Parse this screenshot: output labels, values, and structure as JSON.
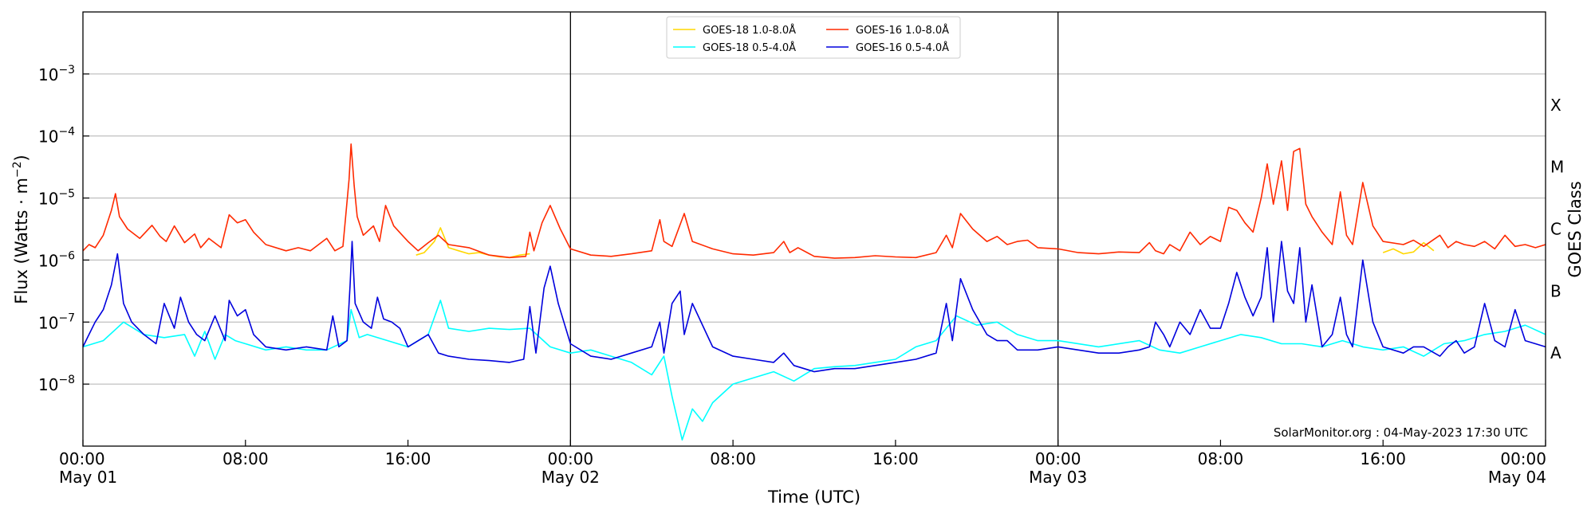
{
  "chart_data": {
    "type": "line",
    "xlabel": "Time (UTC)",
    "ylabel": "Flux (Watts · m",
    "ylabel_sup": "−2",
    "ylabel_close": ")",
    "right_ylabel": "GOES Class",
    "y_scale": "log",
    "ylim": [
      1e-09,
      0.01
    ],
    "grid": "horizontal",
    "legend_position": "top-center",
    "x_range_hours": [
      0,
      72
    ],
    "x_ticks": [
      {
        "h": 0,
        "time": "00:00",
        "day": "May 01"
      },
      {
        "h": 8,
        "time": "08:00",
        "day": ""
      },
      {
        "h": 16,
        "time": "16:00",
        "day": ""
      },
      {
        "h": 24,
        "time": "00:00",
        "day": "May 02"
      },
      {
        "h": 32,
        "time": "08:00",
        "day": ""
      },
      {
        "h": 40,
        "time": "16:00",
        "day": ""
      },
      {
        "h": 48,
        "time": "00:00",
        "day": "May 03"
      },
      {
        "h": 56,
        "time": "08:00",
        "day": ""
      },
      {
        "h": 64,
        "time": "16:00",
        "day": ""
      },
      {
        "h": 72,
        "time": "00:00",
        "day": "May 04"
      }
    ],
    "y_ticks": [
      {
        "exp": -8,
        "base": "10",
        "sup": "−8"
      },
      {
        "exp": -7,
        "base": "10",
        "sup": "−7"
      },
      {
        "exp": -6,
        "base": "10",
        "sup": "−6"
      },
      {
        "exp": -5,
        "base": "10",
        "sup": "−5"
      },
      {
        "exp": -4,
        "base": "10",
        "sup": "−4"
      },
      {
        "exp": -3,
        "base": "10",
        "sup": "−3"
      }
    ],
    "day_boundaries_hours": [
      24,
      48
    ],
    "goes_classes": [
      {
        "label": "A",
        "log_flux": -7.5
      },
      {
        "label": "B",
        "log_flux": -6.5
      },
      {
        "label": "C",
        "log_flux": -5.5
      },
      {
        "label": "M",
        "log_flux": -4.5
      },
      {
        "label": "X",
        "log_flux": -3.5
      }
    ],
    "credit": "SolarMonitor.org : 04-May-2023 17:30 UTC",
    "legend": [
      {
        "label": "GOES-18 1.0-8.0Å",
        "color": "#ffd700"
      },
      {
        "label": "GOES-16 1.0-8.0Å",
        "color": "#ff2a00"
      },
      {
        "label": "GOES-18 0.5-4.0Å",
        "color": "#00ffff"
      },
      {
        "label": "GOES-16 0.5-4.0Å",
        "color": "#0000dd"
      }
    ],
    "series": [
      {
        "name": "GOES-18 1.0-8.0Å",
        "color": "#ffd700",
        "x": [
          16.4,
          16.8,
          17.3,
          17.6,
          18.0,
          18.5,
          19.0,
          19.5,
          20.0,
          20.5,
          21.0,
          21.5,
          22.0,
          64.0,
          64.5,
          65.0,
          65.5,
          66.0,
          66.5
        ],
        "log_y": [
          -5.92,
          -5.88,
          -5.7,
          -5.48,
          -5.8,
          -5.85,
          -5.9,
          -5.88,
          -5.92,
          -5.95,
          -5.96,
          -5.92,
          -5.9,
          -5.88,
          -5.82,
          -5.9,
          -5.87,
          -5.72,
          -5.85
        ]
      },
      {
        "name": "GOES-16 1.0-8.0Å",
        "color": "#ff2a00",
        "x": [
          0,
          0.3,
          0.6,
          1.0,
          1.4,
          1.6,
          1.8,
          2.2,
          2.8,
          3.4,
          3.8,
          4.1,
          4.5,
          5.0,
          5.5,
          5.8,
          6.2,
          6.8,
          7.2,
          7.6,
          8.0,
          8.4,
          9.0,
          10.0,
          10.6,
          11.2,
          12.0,
          12.4,
          12.8,
          13.1,
          13.2,
          13.35,
          13.5,
          13.8,
          14.3,
          14.6,
          14.9,
          15.3,
          16.0,
          16.5,
          17.0,
          17.5,
          18.0,
          19.0,
          20.0,
          21.0,
          21.8,
          22.0,
          22.2,
          22.6,
          23.0,
          23.5,
          24.0,
          25.0,
          26.0,
          27.0,
          28.0,
          28.4,
          28.6,
          29.0,
          29.6,
          30.0,
          31.0,
          32.0,
          33.0,
          34.0,
          34.5,
          34.8,
          35.2,
          36.0,
          37.0,
          38.0,
          39.0,
          40.0,
          41.0,
          42.0,
          42.5,
          42.8,
          43.2,
          43.8,
          44.5,
          45.0,
          45.5,
          46.0,
          46.5,
          47.0,
          48.0,
          49.0,
          50.0,
          51.0,
          52.0,
          52.5,
          52.8,
          53.2,
          53.5,
          54.0,
          54.5,
          55.0,
          55.5,
          56.0,
          56.4,
          56.8,
          57.2,
          57.6,
          58.0,
          58.3,
          58.6,
          59.0,
          59.3,
          59.6,
          59.9,
          60.2,
          60.5,
          61.0,
          61.5,
          61.9,
          62.2,
          62.5,
          63.0,
          63.5,
          64.0,
          65.0,
          65.5,
          66.0,
          66.8,
          67.2,
          67.6,
          68.0,
          68.5,
          69.0,
          69.5,
          70.0,
          70.5,
          71.0,
          71.5,
          72.0
        ],
        "log_y": [
          -5.85,
          -5.75,
          -5.8,
          -5.6,
          -5.2,
          -4.93,
          -5.3,
          -5.5,
          -5.65,
          -5.44,
          -5.62,
          -5.7,
          -5.45,
          -5.72,
          -5.58,
          -5.8,
          -5.65,
          -5.8,
          -5.27,
          -5.4,
          -5.35,
          -5.55,
          -5.75,
          -5.85,
          -5.8,
          -5.85,
          -5.65,
          -5.85,
          -5.78,
          -4.7,
          -4.13,
          -4.8,
          -5.3,
          -5.6,
          -5.45,
          -5.7,
          -5.12,
          -5.45,
          -5.7,
          -5.85,
          -5.72,
          -5.6,
          -5.75,
          -5.8,
          -5.92,
          -5.96,
          -5.94,
          -5.55,
          -5.85,
          -5.4,
          -5.12,
          -5.5,
          -5.82,
          -5.92,
          -5.94,
          -5.9,
          -5.85,
          -5.35,
          -5.7,
          -5.78,
          -5.25,
          -5.7,
          -5.82,
          -5.9,
          -5.92,
          -5.88,
          -5.7,
          -5.88,
          -5.8,
          -5.94,
          -5.97,
          -5.96,
          -5.93,
          -5.95,
          -5.96,
          -5.88,
          -5.6,
          -5.8,
          -5.25,
          -5.5,
          -5.7,
          -5.62,
          -5.75,
          -5.7,
          -5.68,
          -5.8,
          -5.82,
          -5.88,
          -5.9,
          -5.87,
          -5.88,
          -5.72,
          -5.85,
          -5.9,
          -5.75,
          -5.85,
          -5.55,
          -5.75,
          -5.62,
          -5.7,
          -5.15,
          -5.2,
          -5.4,
          -5.55,
          -5.0,
          -4.45,
          -5.1,
          -4.4,
          -5.2,
          -4.25,
          -4.2,
          -5.1,
          -5.3,
          -5.55,
          -5.75,
          -4.9,
          -5.6,
          -5.75,
          -4.75,
          -5.45,
          -5.7,
          -5.75,
          -5.68,
          -5.78,
          -5.6,
          -5.8,
          -5.7,
          -5.75,
          -5.78,
          -5.7,
          -5.82,
          -5.6,
          -5.78,
          -5.75,
          -5.8,
          -5.75
        ]
      },
      {
        "name": "GOES-18 0.5-4.0Å",
        "color": "#00ffff",
        "x": [
          0,
          1.0,
          2.0,
          3.0,
          4.0,
          5.0,
          5.5,
          6.0,
          6.5,
          7.0,
          7.5,
          8.0,
          9.0,
          10.0,
          11.0,
          12.0,
          13.0,
          13.2,
          13.6,
          14.0,
          15.0,
          16.0,
          17.0,
          17.6,
          18.0,
          19.0,
          20.0,
          21.0,
          22.0,
          23.0,
          24.0,
          25.0,
          26.0,
          27.0,
          28.0,
          28.6,
          29.0,
          29.5,
          30.0,
          30.5,
          31.0,
          32.0,
          33.0,
          34.0,
          35.0,
          36.0,
          37.0,
          38.0,
          39.0,
          40.0,
          41.0,
          42.0,
          43.0,
          44.0,
          45.0,
          46.0,
          47.0,
          48.0,
          50.0,
          52.0,
          53.0,
          54.0,
          55.0,
          56.0,
          57.0,
          58.0,
          59.0,
          60.0,
          61.0,
          62.0,
          63.0,
          64.0,
          65.0,
          66.0,
          67.0,
          68.0,
          69.0,
          70.0,
          71.0,
          72.0
        ],
        "log_y": [
          -7.4,
          -7.3,
          -7.0,
          -7.2,
          -7.25,
          -7.2,
          -7.55,
          -7.15,
          -7.6,
          -7.2,
          -7.3,
          -7.35,
          -7.45,
          -7.4,
          -7.45,
          -7.45,
          -7.3,
          -6.8,
          -7.25,
          -7.2,
          -7.3,
          -7.4,
          -7.2,
          -6.65,
          -7.1,
          -7.15,
          -7.1,
          -7.12,
          -7.1,
          -7.4,
          -7.5,
          -7.45,
          -7.55,
          -7.65,
          -7.85,
          -7.55,
          -8.2,
          -8.9,
          -8.4,
          -8.6,
          -8.3,
          -8.0,
          -7.9,
          -7.8,
          -7.95,
          -7.75,
          -7.72,
          -7.7,
          -7.65,
          -7.6,
          -7.4,
          -7.3,
          -6.9,
          -7.05,
          -7.0,
          -7.2,
          -7.3,
          -7.3,
          -7.4,
          -7.3,
          -7.45,
          -7.5,
          -7.4,
          -7.3,
          -7.2,
          -7.25,
          -7.35,
          -7.35,
          -7.4,
          -7.3,
          -7.4,
          -7.45,
          -7.4,
          -7.55,
          -7.35,
          -7.3,
          -7.2,
          -7.15,
          -7.05,
          -7.2
        ]
      },
      {
        "name": "GOES-16 0.5-4.0Å",
        "color": "#0000dd",
        "x": [
          0,
          0.3,
          0.6,
          1.0,
          1.4,
          1.7,
          2.0,
          2.4,
          3.0,
          3.6,
          4.0,
          4.5,
          4.8,
          5.2,
          5.6,
          6.0,
          6.5,
          7.0,
          7.2,
          7.6,
          8.0,
          8.4,
          9.0,
          10.0,
          11.0,
          12.0,
          12.3,
          12.6,
          13.0,
          13.15,
          13.25,
          13.4,
          13.8,
          14.2,
          14.5,
          14.8,
          15.2,
          15.6,
          16.0,
          17.0,
          17.5,
          18.0,
          19.0,
          20.0,
          21.0,
          21.7,
          22.0,
          22.3,
          22.7,
          23.0,
          23.4,
          24.0,
          25.0,
          26.0,
          27.0,
          28.0,
          28.4,
          28.6,
          29.0,
          29.4,
          29.6,
          30.0,
          31.0,
          32.0,
          33.0,
          34.0,
          34.5,
          35.0,
          35.5,
          36.0,
          37.0,
          38.0,
          39.0,
          40.0,
          41.0,
          42.0,
          42.5,
          42.8,
          43.2,
          43.8,
          44.5,
          45.0,
          45.5,
          46.0,
          47.0,
          48.0,
          49.0,
          50.0,
          51.0,
          52.0,
          52.5,
          52.8,
          53.2,
          53.5,
          54.0,
          54.5,
          55.0,
          55.5,
          56.0,
          56.4,
          56.8,
          57.2,
          57.6,
          58.0,
          58.3,
          58.6,
          59.0,
          59.3,
          59.6,
          59.9,
          60.2,
          60.5,
          61.0,
          61.5,
          61.9,
          62.2,
          62.5,
          63.0,
          63.5,
          64.0,
          65.0,
          65.5,
          66.0,
          66.8,
          67.2,
          67.6,
          68.0,
          68.5,
          69.0,
          69.5,
          70.0,
          70.5,
          71.0,
          71.5,
          72.0
        ],
        "log_y": [
          -7.4,
          -7.2,
          -7.0,
          -6.8,
          -6.4,
          -5.9,
          -6.7,
          -7.0,
          -7.2,
          -7.35,
          -6.7,
          -7.1,
          -6.6,
          -7.0,
          -7.2,
          -7.3,
          -6.9,
          -7.3,
          -6.65,
          -6.9,
          -6.8,
          -7.2,
          -7.4,
          -7.45,
          -7.4,
          -7.45,
          -6.9,
          -7.4,
          -7.3,
          -6.4,
          -5.7,
          -6.7,
          -7.0,
          -7.1,
          -6.6,
          -6.95,
          -7.0,
          -7.1,
          -7.4,
          -7.2,
          -7.5,
          -7.55,
          -7.6,
          -7.62,
          -7.65,
          -7.6,
          -6.75,
          -7.5,
          -6.45,
          -6.1,
          -6.7,
          -7.35,
          -7.55,
          -7.6,
          -7.5,
          -7.4,
          -7.0,
          -7.5,
          -6.7,
          -6.5,
          -7.2,
          -6.7,
          -7.4,
          -7.55,
          -7.6,
          -7.65,
          -7.5,
          -7.7,
          -7.75,
          -7.8,
          -7.75,
          -7.75,
          -7.7,
          -7.65,
          -7.6,
          -7.5,
          -6.7,
          -7.3,
          -6.3,
          -6.8,
          -7.2,
          -7.3,
          -7.3,
          -7.45,
          -7.45,
          -7.4,
          -7.45,
          -7.5,
          -7.5,
          -7.45,
          -7.4,
          -7.0,
          -7.2,
          -7.4,
          -7.0,
          -7.2,
          -6.8,
          -7.1,
          -7.1,
          -6.7,
          -6.2,
          -6.6,
          -6.9,
          -6.6,
          -5.8,
          -7.0,
          -5.7,
          -6.5,
          -6.7,
          -5.8,
          -7.0,
          -6.4,
          -7.4,
          -7.2,
          -6.6,
          -7.2,
          -7.4,
          -6.0,
          -7.0,
          -7.4,
          -7.5,
          -7.4,
          -7.4,
          -7.55,
          -7.4,
          -7.3,
          -7.5,
          -7.4,
          -6.7,
          -7.3,
          -7.4,
          -6.8,
          -7.3,
          -7.35,
          -7.4,
          -7.3
        ]
      }
    ]
  }
}
